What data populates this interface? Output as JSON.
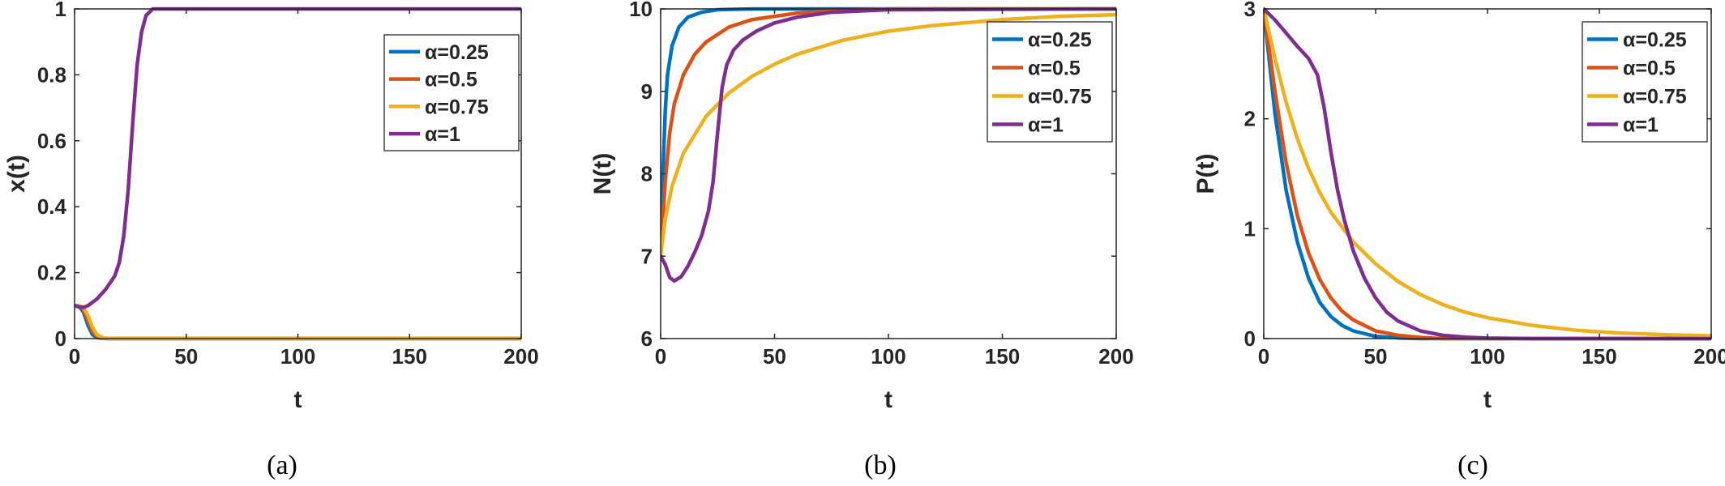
{
  "chart_data": [
    {
      "type": "line",
      "caption": "(a)",
      "xlabel": "t",
      "ylabel": "x(t)",
      "xlim": [
        0,
        200
      ],
      "ylim": [
        0,
        1
      ],
      "xticks": [
        0,
        50,
        100,
        150,
        200
      ],
      "yticks": [
        0,
        0.2,
        0.4,
        0.6,
        0.8,
        1
      ],
      "legend_position": "top-right",
      "grid": false,
      "series": [
        {
          "name": "α=0.25",
          "color": "#0072BD",
          "points": [
            [
              0,
              0.1
            ],
            [
              2,
              0.098
            ],
            [
              4,
              0.08
            ],
            [
              6,
              0.04
            ],
            [
              8,
              0.012
            ],
            [
              10,
              0.003
            ],
            [
              14,
              0
            ],
            [
              200,
              0
            ]
          ]
        },
        {
          "name": "α=0.5",
          "color": "#D95319",
          "points": [
            [
              0,
              0.1
            ],
            [
              2,
              0.099
            ],
            [
              4,
              0.088
            ],
            [
              6,
              0.055
            ],
            [
              8,
              0.022
            ],
            [
              10,
              0.007
            ],
            [
              13,
              0.001
            ],
            [
              16,
              0
            ],
            [
              200,
              0
            ]
          ]
        },
        {
          "name": "α=0.75",
          "color": "#EDB120",
          "points": [
            [
              0,
              0.1
            ],
            [
              2,
              0.1
            ],
            [
              4,
              0.095
            ],
            [
              6,
              0.07
            ],
            [
              8,
              0.035
            ],
            [
              10,
              0.012
            ],
            [
              13,
              0.002
            ],
            [
              17,
              0
            ],
            [
              200,
              0
            ]
          ]
        },
        {
          "name": "α=1",
          "color": "#7E2F8E",
          "points": [
            [
              0,
              0.1
            ],
            [
              2,
              0.096
            ],
            [
              4,
              0.095
            ],
            [
              6,
              0.1
            ],
            [
              10,
              0.12
            ],
            [
              14,
              0.15
            ],
            [
              18,
              0.19
            ],
            [
              20,
              0.23
            ],
            [
              22,
              0.31
            ],
            [
              24,
              0.45
            ],
            [
              26,
              0.65
            ],
            [
              28,
              0.83
            ],
            [
              30,
              0.93
            ],
            [
              32,
              0.98
            ],
            [
              35,
              1.0
            ],
            [
              40,
              1.0
            ],
            [
              200,
              1.0
            ]
          ]
        }
      ]
    },
    {
      "type": "line",
      "caption": "(b)",
      "xlabel": "t",
      "ylabel": "N(t)",
      "xlim": [
        0,
        200
      ],
      "ylim": [
        6,
        10
      ],
      "xticks": [
        0,
        50,
        100,
        150,
        200
      ],
      "yticks": [
        6,
        7,
        8,
        9,
        10
      ],
      "legend_position": "top-right",
      "grid": false,
      "series": [
        {
          "name": "α=0.25",
          "color": "#0072BD",
          "points": [
            [
              0,
              7.0
            ],
            [
              1,
              8.0
            ],
            [
              2,
              8.75
            ],
            [
              3,
              9.2
            ],
            [
              5,
              9.55
            ],
            [
              8,
              9.78
            ],
            [
              12,
              9.9
            ],
            [
              18,
              9.96
            ],
            [
              25,
              9.99
            ],
            [
              40,
              10.0
            ],
            [
              200,
              10.0
            ]
          ]
        },
        {
          "name": "α=0.5",
          "color": "#D95319",
          "points": [
            [
              0,
              7.0
            ],
            [
              2,
              7.9
            ],
            [
              4,
              8.5
            ],
            [
              6,
              8.85
            ],
            [
              10,
              9.2
            ],
            [
              15,
              9.45
            ],
            [
              20,
              9.6
            ],
            [
              30,
              9.78
            ],
            [
              40,
              9.87
            ],
            [
              60,
              9.95
            ],
            [
              80,
              9.98
            ],
            [
              100,
              10.0
            ],
            [
              200,
              10.0
            ]
          ]
        },
        {
          "name": "α=0.75",
          "color": "#EDB120",
          "points": [
            [
              0,
              7.0
            ],
            [
              2,
              7.45
            ],
            [
              5,
              7.85
            ],
            [
              10,
              8.25
            ],
            [
              20,
              8.7
            ],
            [
              30,
              8.98
            ],
            [
              40,
              9.18
            ],
            [
              50,
              9.33
            ],
            [
              60,
              9.45
            ],
            [
              80,
              9.62
            ],
            [
              100,
              9.73
            ],
            [
              120,
              9.8
            ],
            [
              150,
              9.87
            ],
            [
              175,
              9.91
            ],
            [
              200,
              9.93
            ]
          ]
        },
        {
          "name": "α=1",
          "color": "#7E2F8E",
          "points": [
            [
              0,
              7.0
            ],
            [
              2,
              6.9
            ],
            [
              4,
              6.74
            ],
            [
              6,
              6.7
            ],
            [
              9,
              6.75
            ],
            [
              12,
              6.88
            ],
            [
              15,
              7.05
            ],
            [
              18,
              7.25
            ],
            [
              21,
              7.55
            ],
            [
              23,
              7.9
            ],
            [
              25,
              8.5
            ],
            [
              27,
              9.05
            ],
            [
              29,
              9.32
            ],
            [
              32,
              9.5
            ],
            [
              36,
              9.62
            ],
            [
              42,
              9.73
            ],
            [
              50,
              9.83
            ],
            [
              60,
              9.9
            ],
            [
              75,
              9.96
            ],
            [
              100,
              9.99
            ],
            [
              200,
              10.0
            ]
          ]
        }
      ]
    },
    {
      "type": "line",
      "caption": "(c)",
      "xlabel": "t",
      "ylabel": "P(t)",
      "xlim": [
        0,
        200
      ],
      "ylim": [
        0,
        3
      ],
      "xticks": [
        0,
        50,
        100,
        150,
        200
      ],
      "yticks": [
        0,
        1,
        2,
        3
      ],
      "legend_position": "top-right",
      "grid": false,
      "series": [
        {
          "name": "α=0.25",
          "color": "#0072BD",
          "points": [
            [
              0,
              3.0
            ],
            [
              5,
              2.05
            ],
            [
              10,
              1.35
            ],
            [
              15,
              0.88
            ],
            [
              20,
              0.55
            ],
            [
              25,
              0.33
            ],
            [
              30,
              0.2
            ],
            [
              35,
              0.12
            ],
            [
              40,
              0.07
            ],
            [
              50,
              0.02
            ],
            [
              60,
              0.006
            ],
            [
              70,
              0.0
            ],
            [
              200,
              0.0
            ]
          ]
        },
        {
          "name": "α=0.5",
          "color": "#D95319",
          "points": [
            [
              0,
              3.0
            ],
            [
              5,
              2.25
            ],
            [
              10,
              1.6
            ],
            [
              15,
              1.12
            ],
            [
              20,
              0.78
            ],
            [
              25,
              0.54
            ],
            [
              30,
              0.37
            ],
            [
              35,
              0.25
            ],
            [
              40,
              0.17
            ],
            [
              50,
              0.07
            ],
            [
              60,
              0.03
            ],
            [
              70,
              0.01
            ],
            [
              80,
              0.0
            ],
            [
              200,
              0.0
            ]
          ]
        },
        {
          "name": "α=0.75",
          "color": "#EDB120",
          "points": [
            [
              0,
              3.0
            ],
            [
              5,
              2.55
            ],
            [
              10,
              2.15
            ],
            [
              15,
              1.82
            ],
            [
              20,
              1.55
            ],
            [
              25,
              1.33
            ],
            [
              30,
              1.15
            ],
            [
              40,
              0.88
            ],
            [
              50,
              0.68
            ],
            [
              60,
              0.52
            ],
            [
              70,
              0.4
            ],
            [
              80,
              0.31
            ],
            [
              90,
              0.24
            ],
            [
              100,
              0.19
            ],
            [
              120,
              0.12
            ],
            [
              140,
              0.075
            ],
            [
              160,
              0.05
            ],
            [
              180,
              0.035
            ],
            [
              200,
              0.025
            ]
          ]
        },
        {
          "name": "α=1",
          "color": "#7E2F8E",
          "points": [
            [
              0,
              3.0
            ],
            [
              5,
              2.9
            ],
            [
              10,
              2.78
            ],
            [
              15,
              2.66
            ],
            [
              20,
              2.55
            ],
            [
              24,
              2.4
            ],
            [
              27,
              2.1
            ],
            [
              30,
              1.7
            ],
            [
              33,
              1.35
            ],
            [
              36,
              1.08
            ],
            [
              40,
              0.8
            ],
            [
              45,
              0.55
            ],
            [
              50,
              0.37
            ],
            [
              55,
              0.24
            ],
            [
              60,
              0.16
            ],
            [
              70,
              0.07
            ],
            [
              80,
              0.03
            ],
            [
              90,
              0.013
            ],
            [
              100,
              0.005
            ],
            [
              120,
              0.0
            ],
            [
              200,
              0.0
            ]
          ]
        }
      ]
    }
  ]
}
